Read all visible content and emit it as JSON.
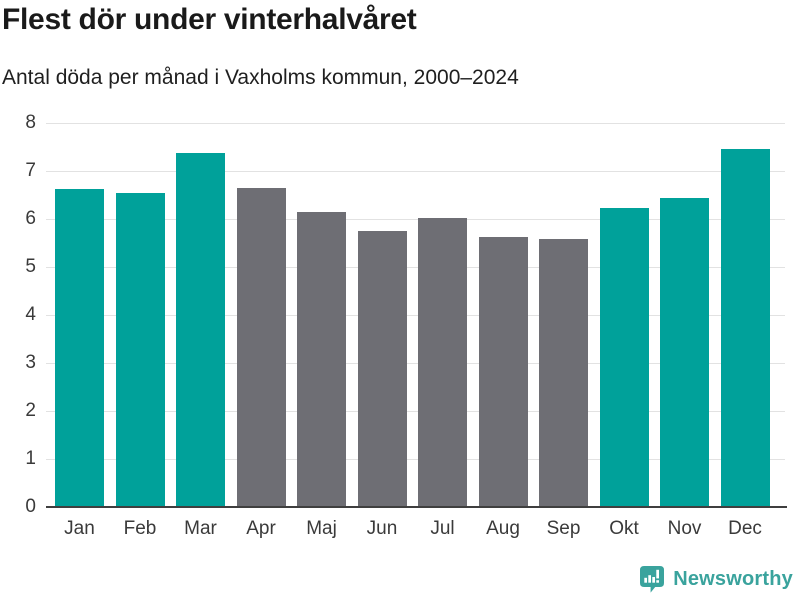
{
  "chart_data": {
    "type": "bar",
    "title": "Flest dör under vinterhalvåret",
    "subtitle": "Antal döda per månad i Vaxholms kommun, 2000–2024",
    "categories": [
      "Jan",
      "Feb",
      "Mar",
      "Apr",
      "Maj",
      "Jun",
      "Jul",
      "Aug",
      "Sep",
      "Okt",
      "Nov",
      "Dec"
    ],
    "values": [
      6.63,
      6.55,
      7.38,
      6.65,
      6.14,
      5.74,
      6.02,
      5.63,
      5.58,
      6.22,
      6.44,
      7.46
    ],
    "bar_colors": [
      "#00a19a",
      "#00a19a",
      "#00a19a",
      "#6e6e74",
      "#6e6e74",
      "#6e6e74",
      "#6e6e74",
      "#6e6e74",
      "#6e6e74",
      "#00a19a",
      "#00a19a",
      "#00a19a"
    ],
    "highlight_color": "#00a19a",
    "muted_color": "#6e6e74",
    "xlabel": "",
    "ylabel": "",
    "ylim": [
      0,
      8
    ],
    "yticks": [
      0,
      1,
      2,
      3,
      4,
      5,
      6,
      7,
      8
    ],
    "grid": true,
    "legend_position": "none"
  },
  "footer": {
    "brand": "Newsworthy",
    "brand_color": "#3aa39d",
    "logo_icon": "speech-bubble-bar-chart-exclamation"
  },
  "colors": {
    "background": "#ffffff",
    "title": "#1a1a1a",
    "subtitle": "#1f1f1f",
    "axis_labels": "#3a3a3a",
    "gridline": "#e2e2e2",
    "axis_line": "#3f3f3f"
  }
}
